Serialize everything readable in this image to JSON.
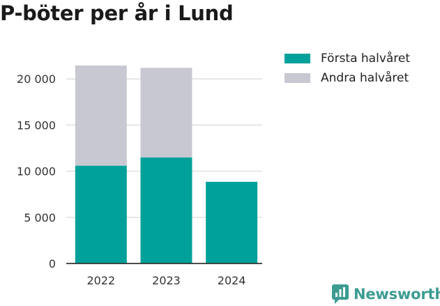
{
  "title": "P-böter per år i Lund",
  "brand": {
    "name": "Newsworthy",
    "icon": "newsworthy-logo-icon",
    "color": "#3d9c92"
  },
  "colors": {
    "first_half": "#00a19a",
    "second_half": "#c8c8d2",
    "grid": "#dddddd",
    "axis": "#333333",
    "text": "#1a1a1a"
  },
  "chart_data": {
    "type": "bar",
    "stacked": true,
    "title": "P-böter per år i Lund",
    "xlabel": "",
    "ylabel": "",
    "categories": [
      "2022",
      "2023",
      "2024"
    ],
    "series": [
      {
        "name": "Första halvåret",
        "values": [
          10600,
          11500,
          8850
        ]
      },
      {
        "name": "Andra halvåret",
        "values": [
          10850,
          9700,
          0
        ]
      }
    ],
    "ylim": [
      0,
      21450
    ],
    "yticks": [
      0,
      5000,
      10000,
      15000,
      20000
    ],
    "ytick_labels": [
      "0",
      "5 000",
      "10 000",
      "15 000",
      "20 000"
    ],
    "grid": true,
    "legend_position": "top-right"
  }
}
